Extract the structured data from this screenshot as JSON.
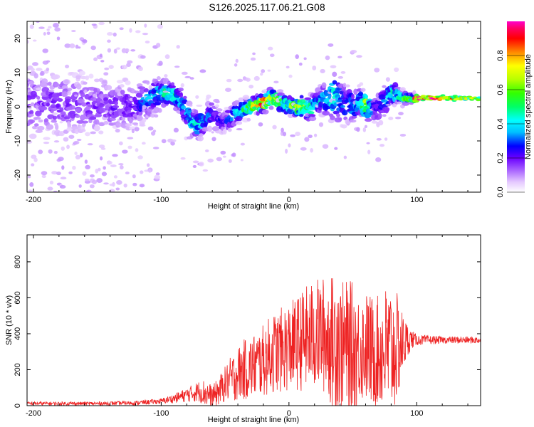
{
  "title": "S126.2025.117.06.21.G08",
  "chart_data": [
    {
      "type": "heatmap",
      "name": "spectrogram",
      "xlabel": "Height of straight line (km)",
      "ylabel": "Frequency (Hz)",
      "xlim": [
        -205,
        150
      ],
      "ylim": [
        -25,
        25
      ],
      "xticks": [
        -200,
        -100,
        0,
        100
      ],
      "yticks": [
        -20,
        -10,
        0,
        10,
        20
      ],
      "colorbar": {
        "label": "Normalized spectral amplitude",
        "range": [
          0,
          1
        ],
        "ticks": [
          0.0,
          0.2,
          0.4,
          0.6,
          0.8
        ],
        "stops": [
          {
            "v": 0.0,
            "color": "#ffffff"
          },
          {
            "v": 0.06,
            "color": "#e4c8ff"
          },
          {
            "v": 0.12,
            "color": "#b070ff"
          },
          {
            "v": 0.2,
            "color": "#6a00ff"
          },
          {
            "v": 0.27,
            "color": "#0000ff"
          },
          {
            "v": 0.35,
            "color": "#00bfff"
          },
          {
            "v": 0.42,
            "color": "#00ffff"
          },
          {
            "v": 0.5,
            "color": "#00ff66"
          },
          {
            "v": 0.58,
            "color": "#33ff00"
          },
          {
            "v": 0.66,
            "color": "#b8ff00"
          },
          {
            "v": 0.74,
            "color": "#ffff00"
          },
          {
            "v": 0.82,
            "color": "#ff8800"
          },
          {
            "v": 0.9,
            "color": "#ff0000"
          },
          {
            "v": 0.96,
            "color": "#ff0066"
          },
          {
            "v": 1.0,
            "color": "#ff00cc"
          }
        ]
      },
      "ridge": {
        "x": [
          -205,
          -180,
          -160,
          -140,
          -120,
          -110,
          -100,
          -92,
          -85,
          -80,
          -75,
          -70,
          -65,
          -60,
          -55,
          -50,
          -45,
          -40,
          -35,
          -30,
          -25,
          -20,
          -15,
          -10,
          -5,
          0,
          5,
          10,
          15,
          20,
          25,
          30,
          35,
          40,
          45,
          50,
          55,
          60,
          65,
          70,
          75,
          80,
          85,
          90,
          95,
          100,
          110,
          120,
          130,
          140,
          150
        ],
        "freq": [
          1,
          1,
          0.5,
          0,
          0.5,
          2.5,
          4,
          4,
          2,
          -1.5,
          -5,
          -5.5,
          -3,
          -2,
          -4,
          -4.5,
          -3,
          -1.5,
          -0.5,
          0,
          0.5,
          1,
          2.5,
          2,
          1,
          0.5,
          0,
          0,
          -0.5,
          0.5,
          1.5,
          3,
          3,
          2,
          0.5,
          0.5,
          1.5,
          0.5,
          -0.5,
          -0.5,
          1.5,
          4,
          3.5,
          2.5,
          2.5,
          2.5,
          2.5,
          2.5,
          2.5,
          2.5,
          2.5
        ],
        "amplitude": [
          0.16,
          0.16,
          0.16,
          0.17,
          0.2,
          0.3,
          0.4,
          0.45,
          0.4,
          0.35,
          0.4,
          0.4,
          0.3,
          0.25,
          0.22,
          0.22,
          0.3,
          0.38,
          0.45,
          0.55,
          0.65,
          0.9,
          0.6,
          0.7,
          0.45,
          0.5,
          0.55,
          0.6,
          0.55,
          0.4,
          0.35,
          0.4,
          0.45,
          0.35,
          0.3,
          0.35,
          0.4,
          0.6,
          0.3,
          0.2,
          0.3,
          0.45,
          0.4,
          0.5,
          0.5,
          0.9,
          0.88,
          0.85,
          0.65,
          0.6,
          0.6
        ],
        "spread_hz": [
          8,
          8,
          7,
          6,
          5,
          4,
          3,
          2.5,
          2.5,
          3,
          3,
          3,
          3,
          3,
          3,
          2.5,
          2.5,
          2.5,
          2,
          2,
          2,
          2,
          2,
          2,
          2,
          2,
          2,
          2.5,
          2.5,
          3,
          3,
          4,
          5,
          5,
          4,
          4,
          3,
          3,
          3,
          4,
          4,
          3,
          2,
          1.5,
          1.2,
          0.8,
          0.8,
          0.8,
          0.8,
          0.8,
          0.8
        ]
      }
    },
    {
      "type": "line",
      "name": "snr",
      "xlabel": "Height of straight line (km)",
      "ylabel": "SNR (10 * v/v)",
      "xlim": [
        -205,
        150
      ],
      "ylim": [
        0,
        950
      ],
      "xticks": [
        -200,
        -100,
        0,
        100
      ],
      "yticks": [
        0,
        200,
        400,
        600,
        800
      ],
      "color": "#ee2222",
      "envelope": {
        "x": [
          -205,
          -180,
          -150,
          -120,
          -100,
          -90,
          -80,
          -70,
          -65,
          -60,
          -55,
          -50,
          -45,
          -40,
          -35,
          -30,
          -25,
          -20,
          -15,
          -10,
          -5,
          0,
          5,
          10,
          15,
          20,
          25,
          30,
          35,
          38,
          40,
          45,
          50,
          55,
          60,
          65,
          70,
          75,
          80,
          85,
          90,
          95,
          100,
          120,
          150
        ],
        "center": [
          12,
          12,
          12,
          15,
          25,
          40,
          60,
          80,
          70,
          50,
          80,
          120,
          150,
          180,
          200,
          210,
          230,
          250,
          280,
          300,
          310,
          330,
          340,
          360,
          380,
          390,
          400,
          380,
          350,
          400,
          330,
          330,
          310,
          320,
          330,
          300,
          300,
          310,
          300,
          320,
          350,
          370,
          365,
          365,
          365
        ],
        "amp": [
          10,
          10,
          10,
          12,
          15,
          25,
          40,
          60,
          80,
          60,
          80,
          100,
          130,
          150,
          170,
          180,
          190,
          200,
          220,
          230,
          240,
          250,
          260,
          280,
          300,
          310,
          320,
          340,
          380,
          480,
          360,
          370,
          380,
          300,
          310,
          320,
          310,
          360,
          380,
          300,
          150,
          60,
          30,
          20,
          20
        ]
      }
    }
  ]
}
